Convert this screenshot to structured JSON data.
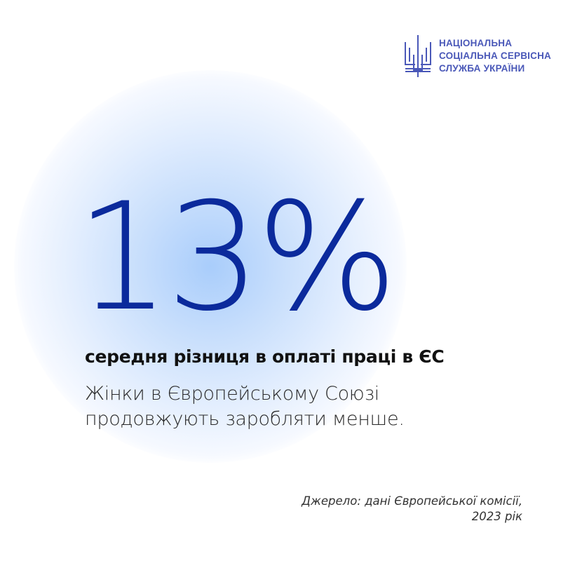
{
  "logo": {
    "lines": [
      "НАЦІОНАЛЬНА",
      "СОЦІАЛЬНА СЕРВІСНА",
      "СЛУЖБА УКРАЇНИ"
    ],
    "icon": "trident-icon",
    "color": "#4a58b8"
  },
  "headline": {
    "value": "13%",
    "color": "#0b2a9c"
  },
  "subtitle": "середня різниця в оплаті праці в ЄС",
  "body": {
    "lines": [
      "Жінки в Європейському Союзі",
      "продовжують заробляти менше."
    ]
  },
  "source": {
    "lines": [
      "Джерело: дані Європейської комісії,",
      "2023 рік"
    ]
  }
}
